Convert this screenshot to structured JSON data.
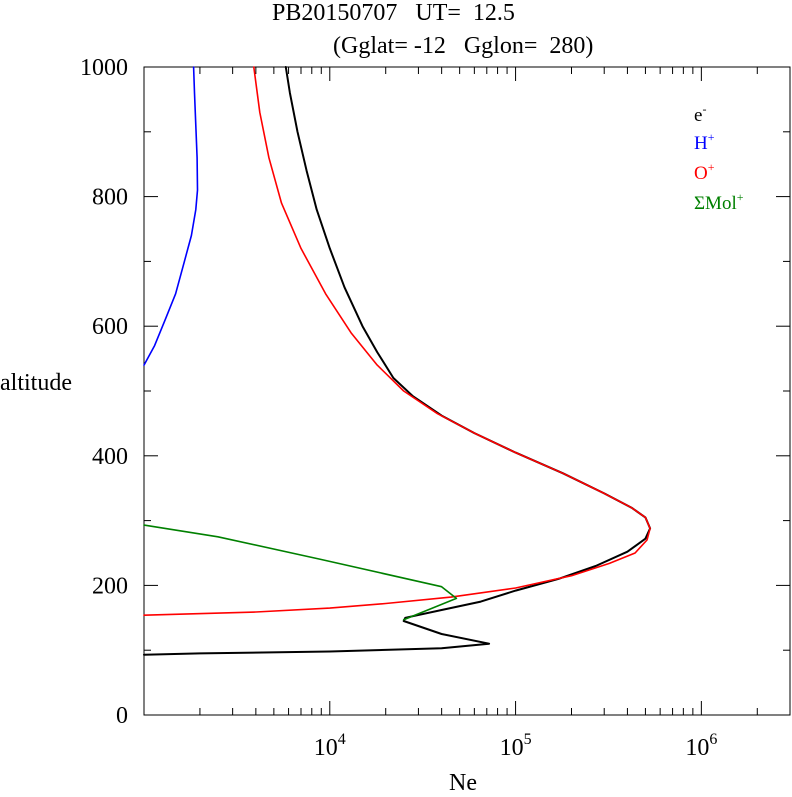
{
  "chart_data": {
    "type": "line",
    "title": "PB20150707   UT=  12.5",
    "subtitle": "(Gglat= -12   Gglon=  280)",
    "xlabel": "Ne",
    "ylabel": "altitude",
    "x_scale": "log",
    "xlim": [
      1000,
      3000000
    ],
    "ylim": [
      0,
      1000
    ],
    "x_tick_labels": [
      {
        "value": 10000,
        "base": "10",
        "exp": "4"
      },
      {
        "value": 100000,
        "base": "10",
        "exp": "5"
      },
      {
        "value": 1000000,
        "base": "10",
        "exp": "6"
      }
    ],
    "y_ticks": [
      0,
      200,
      400,
      600,
      800,
      1000
    ],
    "legend_position": "top-right",
    "series": [
      {
        "name": "e",
        "name_sup": "-",
        "color": "#000000",
        "points": [
          [
            1000,
            93
          ],
          [
            2000,
            95
          ],
          [
            10000,
            98
          ],
          [
            40000,
            103
          ],
          [
            72000,
            110
          ],
          [
            40000,
            125
          ],
          [
            25000,
            145
          ],
          [
            25500,
            150
          ],
          [
            40000,
            162
          ],
          [
            65000,
            175
          ],
          [
            100000,
            192
          ],
          [
            170000,
            210
          ],
          [
            270000,
            230
          ],
          [
            400000,
            252
          ],
          [
            500000,
            272
          ],
          [
            530000,
            288
          ],
          [
            500000,
            305
          ],
          [
            420000,
            320
          ],
          [
            300000,
            342
          ],
          [
            180000,
            373
          ],
          [
            100000,
            405
          ],
          [
            60000,
            435
          ],
          [
            40000,
            462
          ],
          [
            28000,
            492
          ],
          [
            22000,
            520
          ],
          [
            18000,
            560
          ],
          [
            15000,
            600
          ],
          [
            12000,
            660
          ],
          [
            10000,
            720
          ],
          [
            8500,
            780
          ],
          [
            7500,
            840
          ],
          [
            6700,
            900
          ],
          [
            6100,
            960
          ],
          [
            5800,
            1000
          ]
        ]
      },
      {
        "name": "H",
        "name_sup": "+",
        "color": "#0000ff",
        "points": [
          [
            1000,
            540
          ],
          [
            1140,
            570
          ],
          [
            1300,
            610
          ],
          [
            1480,
            650
          ],
          [
            1650,
            700
          ],
          [
            1800,
            740
          ],
          [
            1900,
            780
          ],
          [
            1940,
            810
          ],
          [
            1930,
            860
          ],
          [
            1900,
            910
          ],
          [
            1870,
            960
          ],
          [
            1850,
            1000
          ]
        ]
      },
      {
        "name": "O",
        "name_sup": "+",
        "color": "#ff0000",
        "points": [
          [
            1000,
            154
          ],
          [
            4000,
            159
          ],
          [
            10000,
            165
          ],
          [
            20000,
            172
          ],
          [
            45000,
            182
          ],
          [
            100000,
            196
          ],
          [
            200000,
            215
          ],
          [
            320000,
            234
          ],
          [
            440000,
            250
          ],
          [
            510000,
            270
          ],
          [
            530000,
            288
          ],
          [
            500000,
            305
          ],
          [
            420000,
            320
          ],
          [
            300000,
            342
          ],
          [
            180000,
            373
          ],
          [
            100000,
            405
          ],
          [
            60000,
            435
          ],
          [
            38000,
            465
          ],
          [
            25000,
            500
          ],
          [
            18000,
            540
          ],
          [
            13000,
            590
          ],
          [
            9500,
            650
          ],
          [
            7000,
            720
          ],
          [
            5500,
            790
          ],
          [
            4700,
            860
          ],
          [
            4200,
            930
          ],
          [
            3900,
            1000
          ]
        ]
      },
      {
        "name": "ΣMol",
        "name_sup": "+",
        "color": "#008000",
        "points": [
          [
            1000,
            293
          ],
          [
            2500,
            275
          ],
          [
            9000,
            240
          ],
          [
            40000,
            198
          ],
          [
            48000,
            180
          ],
          [
            25000,
            147
          ]
        ]
      }
    ]
  }
}
